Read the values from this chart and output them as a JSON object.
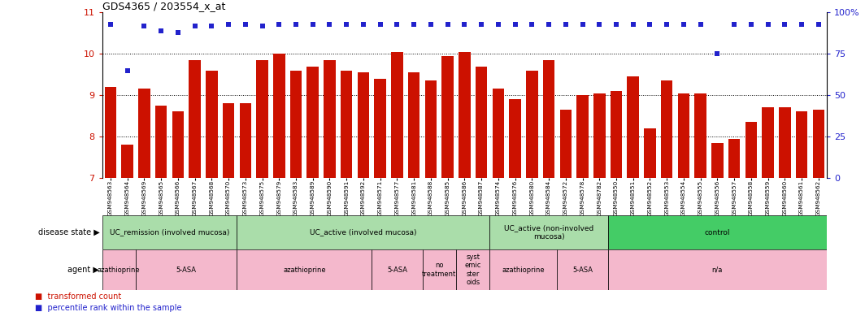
{
  "title": "GDS4365 / 203554_x_at",
  "samples": [
    "GSM948563",
    "GSM948564",
    "GSM948569",
    "GSM948565",
    "GSM948566",
    "GSM948567",
    "GSM948568",
    "GSM948570",
    "GSM948573",
    "GSM948575",
    "GSM948579",
    "GSM948583",
    "GSM948589",
    "GSM948590",
    "GSM948591",
    "GSM948592",
    "GSM948571",
    "GSM948577",
    "GSM948581",
    "GSM948588",
    "GSM948585",
    "GSM948586",
    "GSM948587",
    "GSM948574",
    "GSM948576",
    "GSM948580",
    "GSM948584",
    "GSM948572",
    "GSM948578",
    "GSM948782",
    "GSM948550",
    "GSM948551",
    "GSM948552",
    "GSM948553",
    "GSM948554",
    "GSM948555",
    "GSM948556",
    "GSM948557",
    "GSM948558",
    "GSM948559",
    "GSM948560",
    "GSM948561",
    "GSM948562"
  ],
  "bar_values": [
    9.2,
    7.8,
    9.15,
    8.75,
    8.6,
    9.85,
    9.6,
    8.8,
    8.8,
    9.85,
    10.0,
    9.6,
    9.7,
    9.85,
    9.6,
    9.55,
    9.4,
    10.05,
    9.55,
    9.35,
    9.95,
    10.05,
    9.7,
    9.15,
    8.9,
    9.6,
    9.85,
    8.65,
    9.0,
    9.05,
    9.1,
    9.45,
    8.2,
    9.35,
    9.05,
    9.05,
    7.85,
    7.95,
    8.35,
    8.7,
    8.7,
    8.6,
    8.65
  ],
  "pct_values": [
    93,
    65,
    92,
    89,
    88,
    92,
    92,
    93,
    93,
    92,
    93,
    93,
    93,
    93,
    93,
    93,
    93,
    93,
    93,
    93,
    93,
    93,
    93,
    93,
    93,
    93,
    93,
    93,
    93,
    93,
    93,
    93,
    93,
    93,
    93,
    93,
    75,
    93,
    93,
    93,
    93,
    93,
    93
  ],
  "bar_color": "#CC1100",
  "dot_color": "#2222CC",
  "ylim_left": [
    7,
    11
  ],
  "yticks_left": [
    7,
    8,
    9,
    10,
    11
  ],
  "ylim_right": [
    0,
    100
  ],
  "yticks_right_vals": [
    0,
    25,
    50,
    75,
    100
  ],
  "yticks_right_labels": [
    "0",
    "25",
    "50",
    "75",
    "100%"
  ],
  "disease_state_groups": [
    {
      "label": "UC_remission (involved mucosa)",
      "start": 0,
      "end": 8,
      "color": "#AADDAA"
    },
    {
      "label": "UC_active (involved mucosa)",
      "start": 8,
      "end": 23,
      "color": "#AADDAA"
    },
    {
      "label": "UC_active (non-involved\nmucosa)",
      "start": 23,
      "end": 30,
      "color": "#AADDAA"
    },
    {
      "label": "control",
      "start": 30,
      "end": 43,
      "color": "#44CC66"
    }
  ],
  "agent_groups": [
    {
      "label": "azathioprine",
      "start": 0,
      "end": 2,
      "color": "#F4B8CC"
    },
    {
      "label": "5-ASA",
      "start": 2,
      "end": 8,
      "color": "#F4B8CC"
    },
    {
      "label": "azathioprine",
      "start": 8,
      "end": 16,
      "color": "#F4B8CC"
    },
    {
      "label": "5-ASA",
      "start": 16,
      "end": 19,
      "color": "#F4B8CC"
    },
    {
      "label": "no\ntreatment",
      "start": 19,
      "end": 21,
      "color": "#F4B8CC"
    },
    {
      "label": "syst\nemic\nster\noids",
      "start": 21,
      "end": 23,
      "color": "#F4B8CC"
    },
    {
      "label": "azathioprine",
      "start": 23,
      "end": 27,
      "color": "#F4B8CC"
    },
    {
      "label": "5-ASA",
      "start": 27,
      "end": 30,
      "color": "#F4B8CC"
    },
    {
      "label": "n/a",
      "start": 30,
      "end": 43,
      "color": "#F4B8CC"
    }
  ]
}
